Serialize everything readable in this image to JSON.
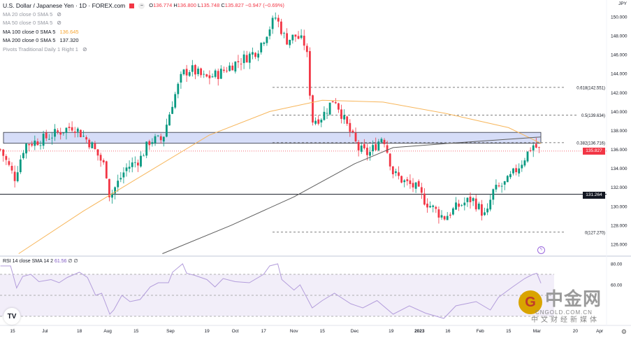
{
  "header": {
    "title": "U.S. Dollar / Japanese Yen · 1D · FOREX.com",
    "ohlc": {
      "o_label": "O",
      "o": "136.774",
      "h_label": "H",
      "h": "136.800",
      "l_label": "L",
      "l": "135.748",
      "c_label": "C",
      "c": "135.827",
      "change": "−0.947 (−0.69%)"
    },
    "indicators": [
      {
        "label": "MA 20 close 0 SMA 5",
        "value": "",
        "hidden": true
      },
      {
        "label": "MA 50 close 0 SMA 5",
        "value": "",
        "hidden": true
      },
      {
        "label": "MA 100 close 0 SMA 5",
        "value": "136.645",
        "hidden": false
      },
      {
        "label": "MA 200 close 0 SMA 5",
        "value": "137.320",
        "hidden": false
      },
      {
        "label": "Pivots Traditional Daily 1 Right 1",
        "value": "",
        "hidden": true
      }
    ],
    "currency": "JPY"
  },
  "rsi_legend": {
    "label": "RSI 14 close SMA 14 2",
    "value": "61.56",
    "extra": "∅ ∅"
  },
  "colors": {
    "up": "#089981",
    "down": "#f23645",
    "ma100": "#f7b65b",
    "ma200": "#5d5d5d",
    "rsi": "#b39ddb",
    "zone": "#c5cff5",
    "zone_border": "#2a2e39",
    "current": "#f23645",
    "support": "#131722"
  },
  "watermark": {
    "logo": "中金网",
    "url": "CNGOLD.COM.CN",
    "tagline": "中文财经新媒体"
  },
  "chart_data": {
    "type": "candlestick",
    "title": "U.S. Dollar / Japanese Yen · 1D · FOREX.com",
    "ylim": [
      125,
      152
    ],
    "y_ticks": [
      "126.000",
      "128.000",
      "130.000",
      "132.000",
      "134.000",
      "136.000",
      "138.000",
      "140.000",
      "142.000",
      "144.000",
      "146.000",
      "148.000",
      "150.000"
    ],
    "x_ticks": [
      {
        "label": "15",
        "date": "2022-06-15"
      },
      {
        "label": "Jul",
        "date": "2022-07-01"
      },
      {
        "label": "18",
        "date": "2022-07-18"
      },
      {
        "label": "Aug",
        "date": "2022-08-01"
      },
      {
        "label": "15",
        "date": "2022-08-15"
      },
      {
        "label": "Sep",
        "date": "2022-09-01"
      },
      {
        "label": "19",
        "date": "2022-09-19"
      },
      {
        "label": "Oct",
        "date": "2022-10-03"
      },
      {
        "label": "17",
        "date": "2022-10-17"
      },
      {
        "label": "Nov",
        "date": "2022-11-01"
      },
      {
        "label": "15",
        "date": "2022-11-15"
      },
      {
        "label": "Dec",
        "date": "2022-12-01"
      },
      {
        "label": "19",
        "date": "2022-12-19"
      },
      {
        "label": "2023",
        "date": "2023-01-02"
      },
      {
        "label": "16",
        "date": "2023-01-16"
      },
      {
        "label": "Feb",
        "date": "2023-02-01"
      },
      {
        "label": "15",
        "date": "2023-02-15"
      },
      {
        "label": "Mar",
        "date": "2023-03-01"
      },
      {
        "label": "20",
        "date": "2023-03-20"
      },
      {
        "label": "Apr",
        "date": "2023-04-01"
      }
    ],
    "close": [
      [
        "2022-06-09",
        136.0
      ],
      [
        "2022-06-16",
        133.0
      ],
      [
        "2022-06-21",
        136.5
      ],
      [
        "2022-06-29",
        137.0
      ],
      [
        "2022-07-15",
        138.5
      ],
      [
        "2022-07-24",
        136.5
      ],
      [
        "2022-07-31",
        134.0
      ],
      [
        "2022-08-02",
        131.0
      ],
      [
        "2022-08-10",
        134.0
      ],
      [
        "2022-08-17",
        135.0
      ],
      [
        "2022-08-22",
        137.0
      ],
      [
        "2022-08-28",
        137.0
      ],
      [
        "2022-09-02",
        141.0
      ],
      [
        "2022-09-07",
        144.0
      ],
      [
        "2022-09-11",
        144.5
      ],
      [
        "2022-09-18",
        143.5
      ],
      [
        "2022-09-25",
        144.0
      ],
      [
        "2022-10-02",
        145.0
      ],
      [
        "2022-10-09",
        145.8
      ],
      [
        "2022-10-14",
        146.5
      ],
      [
        "2022-10-19",
        148.5
      ],
      [
        "2022-10-23",
        150.0
      ],
      [
        "2022-10-28",
        147.5
      ],
      [
        "2022-11-02",
        148.0
      ],
      [
        "2022-11-07",
        147.0
      ],
      [
        "2022-11-10",
        139.0
      ],
      [
        "2022-11-15",
        139.5
      ],
      [
        "2022-11-21",
        141.5
      ],
      [
        "2022-11-26",
        139.0
      ],
      [
        "2022-12-03",
        136.0
      ],
      [
        "2022-12-08",
        135.5
      ],
      [
        "2022-12-15",
        137.5
      ],
      [
        "2022-12-20",
        133.5
      ],
      [
        "2022-12-26",
        132.5
      ],
      [
        "2022-12-31",
        132.0
      ],
      [
        "2023-01-05",
        130.5
      ],
      [
        "2023-01-14",
        128.8
      ],
      [
        "2023-01-21",
        130.0
      ],
      [
        "2023-01-28",
        130.8
      ],
      [
        "2023-02-04",
        128.8
      ],
      [
        "2023-02-07",
        131.5
      ],
      [
        "2023-02-14",
        132.5
      ],
      [
        "2023-02-21",
        134.5
      ],
      [
        "2023-02-27",
        136.5
      ],
      [
        "2023-03-03",
        135.827
      ]
    ],
    "ma100": [
      [
        "2022-06-18",
        125.0
      ],
      [
        "2022-07-20",
        129.5
      ],
      [
        "2022-08-20",
        133.5
      ],
      [
        "2022-09-20",
        137.5
      ],
      [
        "2022-10-20",
        140.0
      ],
      [
        "2022-11-15",
        141.2
      ],
      [
        "2022-12-15",
        141.0
      ],
      [
        "2023-01-15",
        139.8
      ],
      [
        "2023-02-15",
        138.3
      ],
      [
        "2023-03-03",
        136.645
      ]
    ],
    "ma200": [
      [
        "2022-08-28",
        125.0
      ],
      [
        "2022-10-01",
        128.0
      ],
      [
        "2022-11-01",
        131.0
      ],
      [
        "2022-12-01",
        134.5
      ],
      [
        "2022-12-20",
        136.2
      ],
      [
        "2023-01-20",
        136.7
      ],
      [
        "2023-03-03",
        137.32
      ]
    ],
    "zone": {
      "top": 137.8,
      "bottom": 136.65
    },
    "fibonacci": [
      {
        "label": "0.618(142.551)",
        "value": 142.551
      },
      {
        "label": "0.5(139.634)",
        "value": 139.634
      },
      {
        "label": "0.382(136.716)",
        "value": 136.716
      },
      {
        "label": "0(127.270)",
        "value": 127.27
      }
    ],
    "support": {
      "label": "131.264",
      "value": 131.264
    },
    "current": {
      "label": "135.827",
      "value": 135.827
    },
    "rsi": {
      "ylim": [
        20,
        85
      ],
      "ticks": [
        "80.00",
        "60.00"
      ],
      "bands": [
        70,
        50,
        30
      ],
      "values": [
        [
          "2022-06-09",
          78
        ],
        [
          "2022-06-14",
          78
        ],
        [
          "2022-06-17",
          57
        ],
        [
          "2022-06-20",
          68
        ],
        [
          "2022-06-24",
          70
        ],
        [
          "2022-06-28",
          63
        ],
        [
          "2022-07-04",
          65
        ],
        [
          "2022-07-08",
          62
        ],
        [
          "2022-07-12",
          67
        ],
        [
          "2022-07-18",
          72
        ],
        [
          "2022-07-22",
          67
        ],
        [
          "2022-07-26",
          50
        ],
        [
          "2022-07-29",
          52
        ],
        [
          "2022-08-02",
          32
        ],
        [
          "2022-08-04",
          36
        ],
        [
          "2022-08-08",
          50
        ],
        [
          "2022-08-12",
          44
        ],
        [
          "2022-08-17",
          46
        ],
        [
          "2022-08-22",
          58
        ],
        [
          "2022-08-26",
          62
        ],
        [
          "2022-08-31",
          62
        ],
        [
          "2022-09-02",
          72
        ],
        [
          "2022-09-07",
          80
        ],
        [
          "2022-09-09",
          71
        ],
        [
          "2022-09-13",
          69
        ],
        [
          "2022-09-19",
          65
        ],
        [
          "2022-09-23",
          58
        ],
        [
          "2022-09-27",
          66
        ],
        [
          "2022-10-03",
          63
        ],
        [
          "2022-10-10",
          62
        ],
        [
          "2022-10-17",
          70
        ],
        [
          "2022-10-20",
          78
        ],
        [
          "2022-10-24",
          80
        ],
        [
          "2022-10-26",
          65
        ],
        [
          "2022-11-01",
          55
        ],
        [
          "2022-11-04",
          60
        ],
        [
          "2022-11-10",
          38
        ],
        [
          "2022-11-15",
          45
        ],
        [
          "2022-11-21",
          52
        ],
        [
          "2022-11-29",
          42
        ],
        [
          "2022-12-05",
          38
        ],
        [
          "2022-12-12",
          45
        ],
        [
          "2022-12-20",
          32
        ],
        [
          "2022-12-28",
          40
        ],
        [
          "2023-01-05",
          33
        ],
        [
          "2023-01-14",
          28
        ],
        [
          "2023-01-20",
          40
        ],
        [
          "2023-01-30",
          44
        ],
        [
          "2023-02-06",
          36
        ],
        [
          "2023-02-10",
          48
        ],
        [
          "2023-02-17",
          58
        ],
        [
          "2023-02-23",
          66
        ],
        [
          "2023-02-27",
          70
        ],
        [
          "2023-03-01",
          71
        ],
        [
          "2023-03-03",
          61.56
        ]
      ]
    }
  }
}
